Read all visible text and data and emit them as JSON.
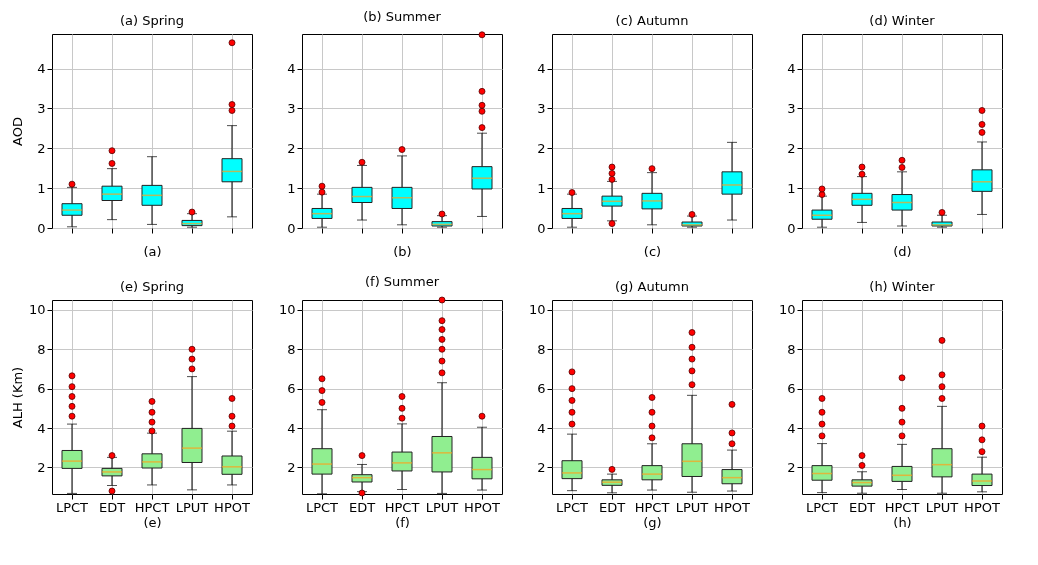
{
  "chart_data": [
    {
      "type": "box",
      "title": "(a) Spring",
      "xlabel": "(a)",
      "ylabel": "AOD",
      "categories": [
        null,
        null,
        null,
        null,
        null
      ],
      "ylim": [
        0,
        4.87
      ],
      "yticks": [
        0,
        1,
        2,
        3,
        4
      ],
      "grid": true,
      "tick_labels": "y",
      "series": [
        {
          "color": "#00ffff",
          "boxes": [
            {
              "low": 0.03,
              "q1": 0.32,
              "median": 0.45,
              "q3": 0.61,
              "high": 1.02,
              "outliers": [
                1.1
              ]
            },
            {
              "low": 0.21,
              "q1": 0.69,
              "median": 0.85,
              "q3": 1.05,
              "high": 1.49,
              "outliers": [
                1.62,
                1.94
              ]
            },
            {
              "low": 0.09,
              "q1": 0.57,
              "median": 0.82,
              "q3": 1.07,
              "high": 1.79
            },
            {
              "low": 0.02,
              "q1": 0.06,
              "median": 0.11,
              "q3": 0.19,
              "high": 0.36,
              "outliers": [
                0.4
              ]
            },
            {
              "low": 0.28,
              "q1": 1.16,
              "median": 1.42,
              "q3": 1.74,
              "high": 2.57,
              "outliers": [
                2.95,
                3.1,
                4.65
              ]
            }
          ]
        }
      ]
    },
    {
      "type": "box",
      "title": "(b) Summer",
      "xlabel": "(b)",
      "categories": [
        null,
        null,
        null,
        null,
        null
      ],
      "ylim": [
        0,
        4.87
      ],
      "yticks": [
        0,
        1,
        2,
        3,
        4
      ],
      "grid": true,
      "tick_labels": "y",
      "series": [
        {
          "color": "#00ffff",
          "boxes": [
            {
              "low": 0.02,
              "q1": 0.24,
              "median": 0.36,
              "q3": 0.49,
              "high": 0.85,
              "outliers": [
                0.9,
                1.05
              ]
            },
            {
              "low": 0.2,
              "q1": 0.64,
              "median": 0.79,
              "q3": 1.02,
              "high": 1.57,
              "outliers": [
                1.65
              ]
            },
            {
              "low": 0.08,
              "q1": 0.49,
              "median": 0.76,
              "q3": 1.02,
              "high": 1.81,
              "outliers": [
                1.97
              ]
            },
            {
              "low": 0.02,
              "q1": 0.05,
              "median": 0.09,
              "q3": 0.16,
              "high": 0.31,
              "outliers": [
                0.35
              ]
            },
            {
              "low": 0.29,
              "q1": 0.98,
              "median": 1.25,
              "q3": 1.54,
              "high": 2.38,
              "outliers": [
                2.52,
                2.93,
                3.08,
                3.43,
                4.85
              ]
            }
          ]
        }
      ]
    },
    {
      "type": "box",
      "title": "(c) Autumn",
      "xlabel": "(c)",
      "categories": [
        null,
        null,
        null,
        null,
        null
      ],
      "ylim": [
        0,
        4.87
      ],
      "yticks": [
        0,
        1,
        2,
        3,
        4
      ],
      "grid": true,
      "tick_labels": "y",
      "series": [
        {
          "color": "#00ffff",
          "boxes": [
            {
              "low": 0.02,
              "q1": 0.24,
              "median": 0.36,
              "q3": 0.49,
              "high": 0.85,
              "outliers": [
                0.89
              ]
            },
            {
              "low": 0.18,
              "q1": 0.55,
              "median": 0.67,
              "q3": 0.8,
              "high": 1.17,
              "outliers": [
                0.11,
                1.22,
                1.37,
                1.53
              ]
            },
            {
              "low": 0.08,
              "q1": 0.48,
              "median": 0.68,
              "q3": 0.87,
              "high": 1.39,
              "outliers": [
                1.49
              ]
            },
            {
              "low": 0.02,
              "q1": 0.05,
              "median": 0.08,
              "q3": 0.15,
              "high": 0.3,
              "outliers": [
                0.34
              ]
            },
            {
              "low": 0.2,
              "q1": 0.85,
              "median": 1.08,
              "q3": 1.41,
              "high": 2.15
            }
          ]
        }
      ]
    },
    {
      "type": "box",
      "title": "(d) Winter",
      "xlabel": "(d)",
      "categories": [
        null,
        null,
        null,
        null,
        null
      ],
      "ylim": [
        0,
        4.87
      ],
      "yticks": [
        0,
        1,
        2,
        3,
        4
      ],
      "grid": true,
      "tick_labels": "y",
      "series": [
        {
          "color": "#00ffff",
          "boxes": [
            {
              "low": 0.02,
              "q1": 0.22,
              "median": 0.32,
              "q3": 0.45,
              "high": 0.8,
              "outliers": [
                0.84,
                0.98
              ]
            },
            {
              "low": 0.14,
              "q1": 0.57,
              "median": 0.72,
              "q3": 0.87,
              "high": 1.29,
              "outliers": [
                1.35,
                1.53
              ]
            },
            {
              "low": 0.05,
              "q1": 0.45,
              "median": 0.64,
              "q3": 0.84,
              "high": 1.41,
              "outliers": [
                1.52,
                1.7
              ]
            },
            {
              "low": 0.02,
              "q1": 0.05,
              "median": 0.08,
              "q3": 0.15,
              "high": 0.32,
              "outliers": [
                0.39
              ]
            },
            {
              "low": 0.34,
              "q1": 0.92,
              "median": 1.16,
              "q3": 1.46,
              "high": 2.16,
              "outliers": [
                2.4,
                2.6,
                2.95
              ]
            }
          ]
        }
      ]
    },
    {
      "type": "box",
      "title": "(e) Spring",
      "xlabel": "(e)",
      "ylabel": "ALH (Km)",
      "categories": [
        "LPCT",
        "EDT",
        "HPCT",
        "LPUT",
        "HPOT"
      ],
      "ylim": [
        0.65,
        10.5
      ],
      "yticks": [
        2,
        4,
        6,
        8,
        10
      ],
      "grid": true,
      "series": [
        {
          "color": "#90ee90",
          "boxes": [
            {
              "low": 0.68,
              "q1": 1.95,
              "median": 2.32,
              "q3": 2.86,
              "high": 4.2,
              "outliers": [
                4.6,
                5.1,
                5.6,
                6.1,
                6.65
              ]
            },
            {
              "low": 1.08,
              "q1": 1.57,
              "median": 1.77,
              "q3": 1.95,
              "high": 2.51,
              "outliers": [
                0.8,
                2.6
              ]
            },
            {
              "low": 1.11,
              "q1": 1.97,
              "median": 2.28,
              "q3": 2.69,
              "high": 3.74,
              "outliers": [
                3.85,
                4.3,
                4.8,
                5.35
              ]
            },
            {
              "low": 0.86,
              "q1": 2.25,
              "median": 2.98,
              "q3": 3.98,
              "high": 6.61,
              "outliers": [
                7.0,
                7.5,
                8.0
              ]
            },
            {
              "low": 1.11,
              "q1": 1.65,
              "median": 2.03,
              "q3": 2.58,
              "high": 3.84,
              "outliers": [
                4.1,
                4.6,
                5.5
              ]
            }
          ]
        }
      ]
    },
    {
      "type": "box",
      "title": "(f) Summer",
      "xlabel": "(f)",
      "categories": [
        "LPCT",
        "EDT",
        "HPCT",
        "LPUT",
        "HPOT"
      ],
      "ylim": [
        0.65,
        10.5
      ],
      "yticks": [
        2,
        4,
        6,
        8,
        10
      ],
      "grid": true,
      "series": [
        {
          "color": "#90ee90",
          "boxes": [
            {
              "low": 0.66,
              "q1": 1.66,
              "median": 2.17,
              "q3": 2.95,
              "high": 4.93,
              "outliers": [
                5.3,
                5.9,
                6.5
              ]
            },
            {
              "low": 0.77,
              "q1": 1.26,
              "median": 1.48,
              "q3": 1.63,
              "high": 2.15,
              "outliers": [
                0.7,
                2.6
              ]
            },
            {
              "low": 0.88,
              "q1": 1.82,
              "median": 2.23,
              "q3": 2.78,
              "high": 4.21,
              "outliers": [
                4.5,
                5.0,
                5.6
              ]
            },
            {
              "low": 0.68,
              "q1": 1.77,
              "median": 2.74,
              "q3": 3.57,
              "high": 6.3,
              "outliers": [
                6.8,
                7.4,
                8.0,
                8.5,
                9.0,
                9.45,
                10.5
              ]
            },
            {
              "low": 0.85,
              "q1": 1.42,
              "median": 1.89,
              "q3": 2.51,
              "high": 4.04,
              "outliers": [
                4.6
              ]
            }
          ]
        }
      ]
    },
    {
      "type": "box",
      "title": "(g) Autumn",
      "xlabel": "(g)",
      "categories": [
        "LPCT",
        "EDT",
        "HPCT",
        "LPUT",
        "HPOT"
      ],
      "ylim": [
        0.65,
        10.5
      ],
      "yticks": [
        2,
        4,
        6,
        8,
        10
      ],
      "grid": true,
      "series": [
        {
          "color": "#90ee90",
          "boxes": [
            {
              "low": 0.82,
              "q1": 1.43,
              "median": 1.72,
              "q3": 2.34,
              "high": 3.69,
              "outliers": [
                4.2,
                4.8,
                5.4,
                6.0,
                6.85
              ]
            },
            {
              "low": 0.71,
              "q1": 1.09,
              "median": 1.25,
              "q3": 1.37,
              "high": 1.66,
              "outliers": [
                1.9
              ]
            },
            {
              "low": 0.85,
              "q1": 1.37,
              "median": 1.66,
              "q3": 2.09,
              "high": 3.2,
              "outliers": [
                3.5,
                4.1,
                4.8,
                5.55
              ]
            },
            {
              "low": 0.74,
              "q1": 1.54,
              "median": 2.31,
              "q3": 3.2,
              "high": 5.66,
              "outliers": [
                6.2,
                6.9,
                7.5,
                8.1,
                8.85
              ]
            },
            {
              "low": 0.8,
              "q1": 1.17,
              "median": 1.48,
              "q3": 1.89,
              "high": 2.88,
              "outliers": [
                3.2,
                3.75,
                5.2
              ]
            }
          ]
        }
      ]
    },
    {
      "type": "box",
      "title": "(h) Winter",
      "xlabel": "(h)",
      "categories": [
        "LPCT",
        "EDT",
        "HPCT",
        "LPUT",
        "HPOT"
      ],
      "ylim": [
        0.65,
        10.5
      ],
      "yticks": [
        2,
        4,
        6,
        8,
        10
      ],
      "grid": true,
      "series": [
        {
          "color": "#90ee90",
          "boxes": [
            {
              "low": 0.72,
              "q1": 1.35,
              "median": 1.69,
              "q3": 2.09,
              "high": 3.21,
              "outliers": [
                3.6,
                4.2,
                4.8,
                5.5
              ]
            },
            {
              "low": 0.69,
              "q1": 1.05,
              "median": 1.23,
              "q3": 1.37,
              "high": 1.78,
              "outliers": [
                2.1,
                2.6
              ]
            },
            {
              "low": 0.88,
              "q1": 1.29,
              "median": 1.6,
              "q3": 2.05,
              "high": 3.17,
              "outliers": [
                3.6,
                4.3,
                5.0,
                6.55
              ]
            },
            {
              "low": 0.69,
              "q1": 1.52,
              "median": 2.14,
              "q3": 2.95,
              "high": 5.1,
              "outliers": [
                5.5,
                6.1,
                6.7,
                8.45
              ]
            },
            {
              "low": 0.76,
              "q1": 1.08,
              "median": 1.31,
              "q3": 1.66,
              "high": 2.52,
              "outliers": [
                2.8,
                3.4,
                4.1
              ]
            }
          ]
        }
      ]
    }
  ]
}
